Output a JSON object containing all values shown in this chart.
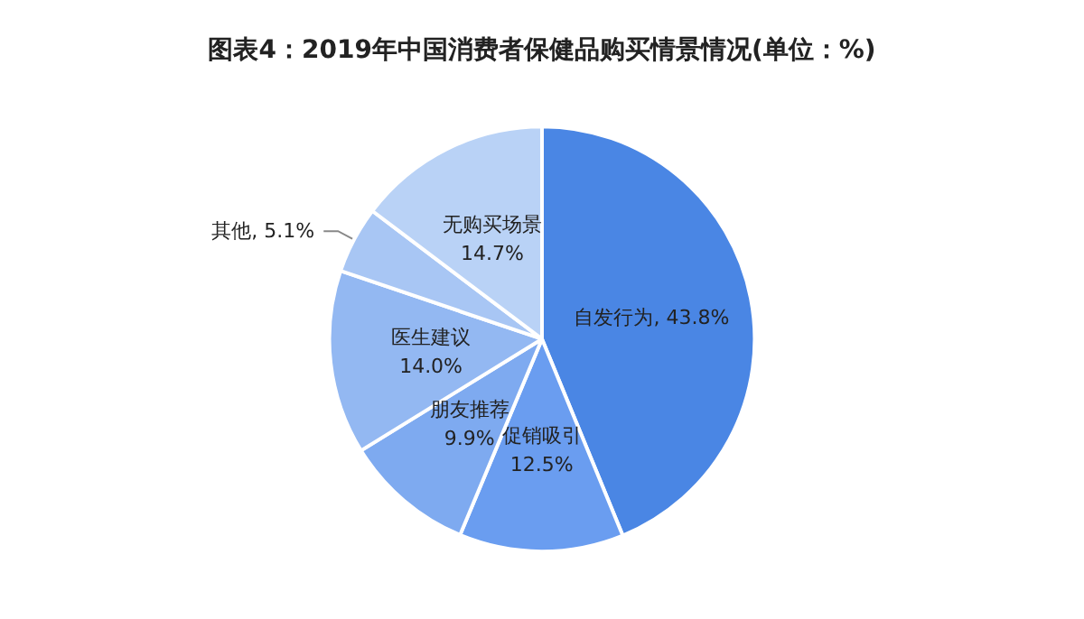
{
  "chart_data": {
    "type": "pie",
    "title": "图表4：2019年中国消费者保健品购买情景情况(单位：%)",
    "categories": [
      "自发行为",
      "促销吸引",
      "朋友推荐",
      "医生建议",
      "其他",
      "无购买场景"
    ],
    "values": [
      43.8,
      12.5,
      9.9,
      14.0,
      5.1,
      14.7
    ],
    "value_labels": [
      "43.8%",
      "12.5%",
      "9.9%",
      "14.0%",
      "5.1%",
      "14.7%"
    ],
    "colors": [
      "#4a86e4",
      "#6a9df0",
      "#7eaaf0",
      "#93b8f2",
      "#a8c6f4",
      "#b9d2f6"
    ],
    "legend": false
  }
}
